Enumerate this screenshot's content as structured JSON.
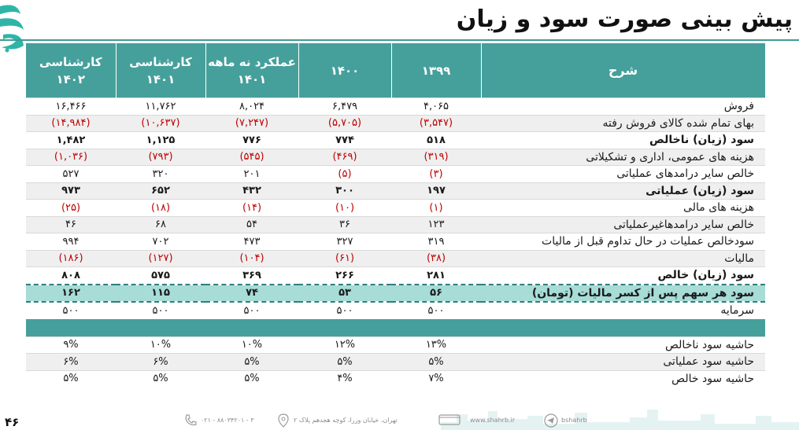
{
  "title": "پیش بینی صورت سود و زیان",
  "table": {
    "headers": {
      "desc": "شرح",
      "y1399": "۱۳۹۹",
      "y1400": "۱۴۰۰",
      "nine_month_l1": "عملکرد نه ماهه",
      "nine_month_l2": "۱۴۰۱",
      "exp1401_l1": "کارشناسی",
      "exp1401_l2": "۱۴۰۱",
      "exp1402_l1": "کارشناسی",
      "exp1402_l2": "۱۴۰۲"
    },
    "rows": [
      {
        "desc": "فروش",
        "v1399": "۴,۰۶۵",
        "v1400": "۶,۴۷۹",
        "v9m": "۸,۰۲۴",
        "v1401": "۱۱,۷۶۲",
        "v1402": "۱۶,۴۶۶"
      },
      {
        "desc": "بهای تمام شده کالای فروش رفته",
        "v1399": "(۳,۵۴۷)",
        "v1400": "(۵,۷۰۵)",
        "v9m": "(۷,۲۴۷)",
        "v1401": "(۱۰,۶۳۷)",
        "v1402": "(۱۴,۹۸۴)"
      },
      {
        "desc": "سود (زیان) ناخالص",
        "v1399": "۵۱۸",
        "v1400": "۷۷۴",
        "v9m": "۷۷۶",
        "v1401": "۱,۱۲۵",
        "v1402": "۱,۴۸۲"
      },
      {
        "desc": "هزینه های عمومی، اداری و تشکیلاتی",
        "v1399": "(۳۱۹)",
        "v1400": "(۴۶۹)",
        "v9m": "(۵۴۵)",
        "v1401": "(۷۹۳)",
        "v1402": "(۱,۰۳۶)"
      },
      {
        "desc": "خالص سایر درامدهای  عملیاتی",
        "v1399": "(۳)",
        "v1400": "(۵)",
        "v9m": "۲۰۱",
        "v1401": "۳۲۰",
        "v1402": "۵۲۷"
      },
      {
        "desc": "سود (زیان) عملیاتی",
        "v1399": "۱۹۷",
        "v1400": "۳۰۰",
        "v9m": "۴۳۲",
        "v1401": "۶۵۲",
        "v1402": "۹۷۳"
      },
      {
        "desc": "هزینه های مالی",
        "v1399": "(۱)",
        "v1400": "(۱۰)",
        "v9m": "(۱۴)",
        "v1401": "(۱۸)",
        "v1402": "(۲۵)"
      },
      {
        "desc": "خالص سایر درامدهاغیرعملیاتی",
        "v1399": "۱۲۳",
        "v1400": "۳۶",
        "v9m": "۵۴",
        "v1401": "۶۸",
        "v1402": "۴۶"
      },
      {
        "desc": "سودخالص عملیات در حال تداوم قبل از مالیات",
        "v1399": "۳۱۹",
        "v1400": "۳۲۷",
        "v9m": "۴۷۳",
        "v1401": "۷۰۲",
        "v1402": "۹۹۴"
      },
      {
        "desc": "مالیات",
        "v1399": "(۳۸)",
        "v1400": "(۶۱)",
        "v9m": "(۱۰۴)",
        "v1401": "(۱۲۷)",
        "v1402": "(۱۸۶)"
      },
      {
        "desc": "سود (زیان) خالص",
        "v1399": "۲۸۱",
        "v1400": "۲۶۶",
        "v9m": "۳۶۹",
        "v1401": "۵۷۵",
        "v1402": "۸۰۸"
      },
      {
        "desc": "سود هر سهم پس از کسر مالیات (تومان)",
        "v1399": "۵۶",
        "v1400": "۵۳",
        "v9m": "۷۴",
        "v1401": "۱۱۵",
        "v1402": "۱۶۲"
      },
      {
        "desc": "سرمایه",
        "v1399": "۵۰۰",
        "v1400": "۵۰۰",
        "v9m": "۵۰۰",
        "v1401": "۵۰۰",
        "v1402": "۵۰۰"
      }
    ],
    "margins": [
      {
        "desc": "حاشیه سود ناخالص",
        "v1399": "۱۳%",
        "v1400": "۱۲%",
        "v9m": "۱۰%",
        "v1401": "۱۰%",
        "v1402": "۹%"
      },
      {
        "desc": "حاشیه سود عملیاتی",
        "v1399": "۵%",
        "v1400": "۵%",
        "v9m": "۵%",
        "v1401": "۶%",
        "v1402": "۶%"
      },
      {
        "desc": "حاشیه سود خالص",
        "v1399": "۷%",
        "v1400": "۴%",
        "v9m": "۵%",
        "v1401": "۵%",
        "v1402": "۵%"
      }
    ]
  },
  "page_number": "۴۶",
  "footer": {
    "telegram": "bshahrb",
    "website": "www.shahrb.ir",
    "address": "تهران، خیابان وزرا، کوچه هجدهم پلاک ۲",
    "phone": "۰۲۱ - ۸۸۰۳۴۲۰۱ - ۳"
  },
  "colors": {
    "header_bg": "#45a09c",
    "highlight_bg": "#a7dcd7",
    "negative": "#c00000"
  }
}
